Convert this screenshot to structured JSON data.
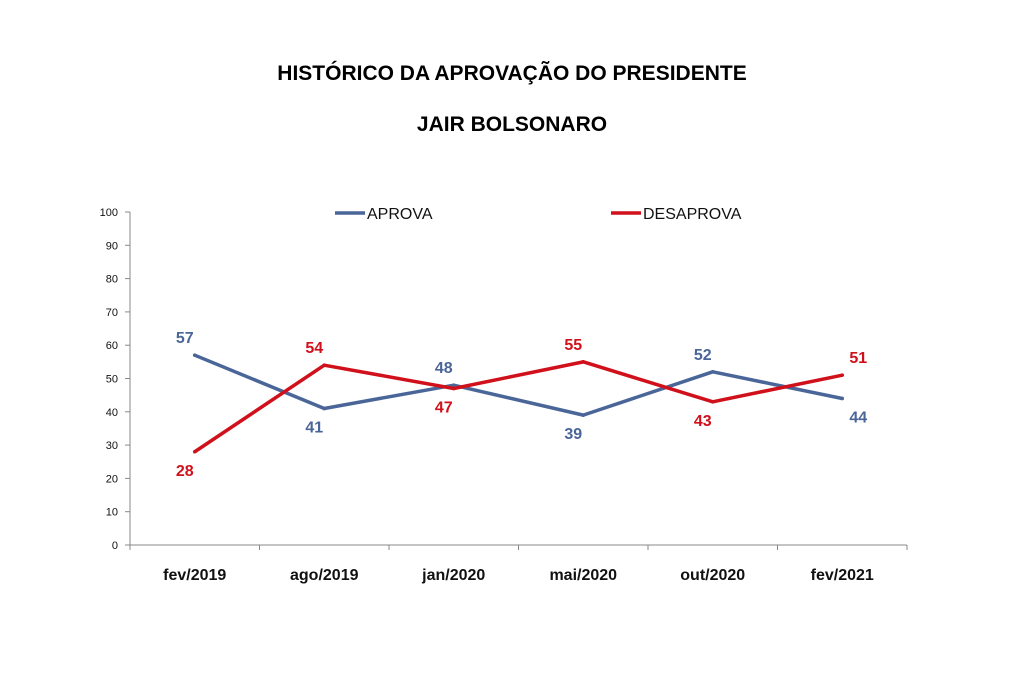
{
  "chart_data": {
    "type": "line",
    "title": "HISTÓRICO DA APROVAÇÃO DO PRESIDENTE",
    "subtitle": "JAIR BOLSONARO",
    "categories": [
      "fev/2019",
      "ago/2019",
      "jan/2020",
      "mai/2020",
      "out/2020",
      "fev/2021"
    ],
    "series": [
      {
        "name": "APROVA",
        "color": "#4a6698",
        "values": [
          57,
          41,
          48,
          39,
          52,
          44
        ]
      },
      {
        "name": "DESAPROVA",
        "color": "#d0101a",
        "values": [
          28,
          54,
          47,
          55,
          43,
          51
        ]
      }
    ],
    "ylim": [
      0,
      100
    ],
    "yticks": [
      0,
      10,
      20,
      30,
      40,
      50,
      60,
      70,
      80,
      90,
      100
    ],
    "legend_position": "top",
    "grid": false
  }
}
